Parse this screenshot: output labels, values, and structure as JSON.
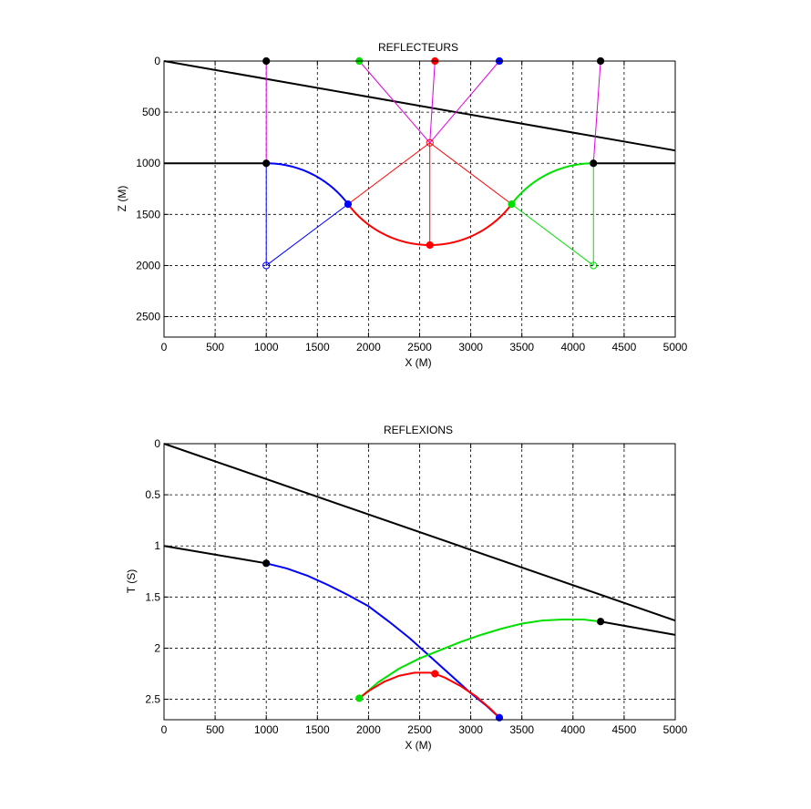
{
  "colors": {
    "black": "#000000",
    "blue": "#0000ff",
    "red": "#ff0000",
    "green": "#00e000",
    "magenta": "#e000e0"
  },
  "chart_data": [
    {
      "type": "line",
      "title": "REFLECTEURS",
      "xlabel": "X (M)",
      "ylabel": "Z (M)",
      "xlim": [
        0,
        5000
      ],
      "ylim": [
        0,
        2700
      ],
      "y_reversed": true,
      "grid": true,
      "xticks": [
        0,
        500,
        1000,
        1500,
        2000,
        2500,
        3000,
        3500,
        4000,
        4500,
        5000
      ],
      "yticks": [
        0,
        500,
        1000,
        1500,
        2000,
        2500
      ],
      "series": [
        {
          "color": "black",
          "width": 2,
          "kind": "line",
          "x": [
            0,
            5000
          ],
          "y": [
            0,
            875
          ]
        },
        {
          "color": "black",
          "width": 2,
          "kind": "line",
          "x": [
            0,
            1000
          ],
          "y": [
            1000,
            1000
          ]
        },
        {
          "color": "black",
          "width": 2,
          "kind": "line",
          "x": [
            4200,
            5000
          ],
          "y": [
            1000,
            1000
          ]
        },
        {
          "color": "blue",
          "width": 2,
          "kind": "arc",
          "center": [
            1000,
            2000
          ],
          "radius": 1000,
          "a_from": -90,
          "a_to": -36.87
        },
        {
          "color": "red",
          "width": 2,
          "kind": "arc",
          "center": [
            2600,
            800
          ],
          "radius": 1000,
          "a_from": 143.13,
          "a_to": 36.87
        },
        {
          "color": "green",
          "width": 2,
          "kind": "arc",
          "center": [
            4200,
            2000
          ],
          "radius": 1000,
          "a_from": -143.13,
          "a_to": -90
        },
        {
          "color": "blue",
          "width": 1,
          "kind": "line",
          "x": [
            1000,
            1000
          ],
          "y": [
            1000,
            2000
          ]
        },
        {
          "color": "blue",
          "width": 1,
          "kind": "line",
          "x": [
            1000,
            1800
          ],
          "y": [
            2000,
            1400
          ]
        },
        {
          "color": "green",
          "width": 1,
          "kind": "line",
          "x": [
            4200,
            4200
          ],
          "y": [
            1000,
            2000
          ]
        },
        {
          "color": "green",
          "width": 1,
          "kind": "line",
          "x": [
            4200,
            3400
          ],
          "y": [
            2000,
            1400
          ]
        },
        {
          "color": "red",
          "width": 1,
          "kind": "line",
          "x": [
            1800,
            2600,
            3400
          ],
          "y": [
            1400,
            800,
            1400
          ]
        },
        {
          "color": "red",
          "width": 1,
          "kind": "line",
          "x": [
            2600,
            2600
          ],
          "y": [
            800,
            1800
          ]
        },
        {
          "color": "magenta",
          "width": 1,
          "kind": "line",
          "x": [
            1000,
            1000
          ],
          "y": [
            0,
            1000
          ]
        },
        {
          "color": "magenta",
          "width": 1,
          "kind": "line",
          "x": [
            4270,
            4200
          ],
          "y": [
            0,
            1000
          ]
        },
        {
          "color": "magenta",
          "width": 1,
          "kind": "line",
          "x": [
            1910,
            2600
          ],
          "y": [
            0,
            800
          ]
        },
        {
          "color": "magenta",
          "width": 1,
          "kind": "line",
          "x": [
            2650,
            2600
          ],
          "y": [
            0,
            800
          ]
        },
        {
          "color": "magenta",
          "width": 1,
          "kind": "line",
          "x": [
            3280,
            2600
          ],
          "y": [
            0,
            800
          ]
        }
      ],
      "markers": [
        {
          "x": 1000,
          "y": 0,
          "color": "black",
          "filled": true
        },
        {
          "x": 1910,
          "y": 0,
          "color": "green",
          "filled": true
        },
        {
          "x": 2650,
          "y": 0,
          "color": "red",
          "filled": true
        },
        {
          "x": 3280,
          "y": 0,
          "color": "blue",
          "filled": true
        },
        {
          "x": 4270,
          "y": 0,
          "color": "black",
          "filled": true
        },
        {
          "x": 1000,
          "y": 1000,
          "color": "black",
          "filled": true
        },
        {
          "x": 4200,
          "y": 1000,
          "color": "black",
          "filled": true
        },
        {
          "x": 1800,
          "y": 1400,
          "color": "blue",
          "filled": true
        },
        {
          "x": 3400,
          "y": 1400,
          "color": "green",
          "filled": true
        },
        {
          "x": 2600,
          "y": 1800,
          "color": "red",
          "filled": true
        },
        {
          "x": 2600,
          "y": 800,
          "color": "red",
          "filled": false
        },
        {
          "x": 1000,
          "y": 2000,
          "color": "blue",
          "filled": false
        },
        {
          "x": 4200,
          "y": 2000,
          "color": "green",
          "filled": false
        }
      ]
    },
    {
      "type": "line",
      "title": "REFLEXIONS",
      "xlabel": "X (M)",
      "ylabel": "T (S)",
      "xlim": [
        0,
        5000
      ],
      "ylim": [
        0,
        2.7
      ],
      "y_reversed": true,
      "grid": true,
      "xticks": [
        0,
        500,
        1000,
        1500,
        2000,
        2500,
        3000,
        3500,
        4000,
        4500,
        5000
      ],
      "yticks": [
        0,
        0.5,
        1,
        1.5,
        2,
        2.5
      ],
      "series": [
        {
          "color": "black",
          "width": 2,
          "kind": "line",
          "x": [
            0,
            5000
          ],
          "y": [
            0,
            1.73
          ]
        },
        {
          "color": "black",
          "width": 2,
          "kind": "line",
          "x": [
            0,
            1000
          ],
          "y": [
            1.0,
            1.17
          ]
        },
        {
          "color": "black",
          "width": 2,
          "kind": "line",
          "x": [
            4270,
            5000
          ],
          "y": [
            1.74,
            1.87
          ]
        },
        {
          "color": "blue",
          "width": 2,
          "kind": "line",
          "x": [
            1000,
            1200,
            1400,
            1600,
            1800,
            2000,
            2200,
            2400,
            2600,
            2800,
            3000,
            3150,
            3280
          ],
          "y": [
            1.17,
            1.22,
            1.29,
            1.38,
            1.48,
            1.59,
            1.74,
            1.9,
            2.08,
            2.26,
            2.44,
            2.56,
            2.68
          ]
        },
        {
          "color": "green",
          "width": 2,
          "kind": "line",
          "x": [
            1910,
            2100,
            2300,
            2500,
            2700,
            2900,
            3100,
            3300,
            3500,
            3700,
            3900,
            4100,
            4270
          ],
          "y": [
            2.49,
            2.33,
            2.2,
            2.1,
            2.02,
            1.94,
            1.87,
            1.81,
            1.76,
            1.73,
            1.72,
            1.72,
            1.74
          ]
        },
        {
          "color": "red",
          "width": 2,
          "kind": "line",
          "x": [
            1910,
            2000,
            2150,
            2300,
            2450,
            2600,
            2650,
            2750,
            2900,
            3050,
            3200,
            3280
          ],
          "y": [
            2.49,
            2.42,
            2.33,
            2.27,
            2.24,
            2.24,
            2.25,
            2.29,
            2.37,
            2.47,
            2.6,
            2.68
          ]
        }
      ],
      "markers": [
        {
          "x": 1000,
          "y": 1.17,
          "color": "black",
          "filled": true
        },
        {
          "x": 4270,
          "y": 1.74,
          "color": "black",
          "filled": true
        },
        {
          "x": 1910,
          "y": 2.49,
          "color": "green",
          "filled": true
        },
        {
          "x": 2650,
          "y": 2.25,
          "color": "red",
          "filled": true
        },
        {
          "x": 3280,
          "y": 2.68,
          "color": "blue",
          "filled": true
        }
      ]
    }
  ]
}
